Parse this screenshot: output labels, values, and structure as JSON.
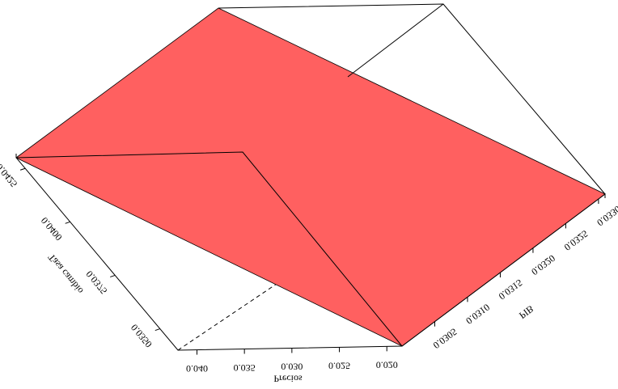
{
  "chart_data": {
    "type": "surface3d",
    "x_axis": {
      "label": "PIB",
      "lim": [
        0.03,
        0.0331
      ],
      "ticks": [
        0.0305,
        {
          "value": 0.031,
          "label": "0.0310"
        },
        0.0315,
        {
          "value": 0.032,
          "label": "0.0320"
        },
        0.0325,
        {
          "value": 0.033,
          "label": "0.0330"
        }
      ]
    },
    "y_axis": {
      "label": "Precios",
      "lim": [
        0.042,
        0.0184
      ],
      "ticks": [
        {
          "value": 0.04,
          "label": "0.040"
        },
        0.035,
        {
          "value": 0.03,
          "label": "0.030"
        },
        0.025,
        {
          "value": 0.02,
          "label": "0.020"
        }
      ]
    },
    "z_axis": {
      "label": "Tasa cambio",
      "lim": [
        0.043,
        0.034
      ],
      "ticks": [
        0.0425,
        {
          "value": 0.04,
          "label": "0.0400"
        },
        0.0375,
        {
          "value": 0.035,
          "label": "0.0350"
        }
      ]
    },
    "color": "#ff6060"
  }
}
